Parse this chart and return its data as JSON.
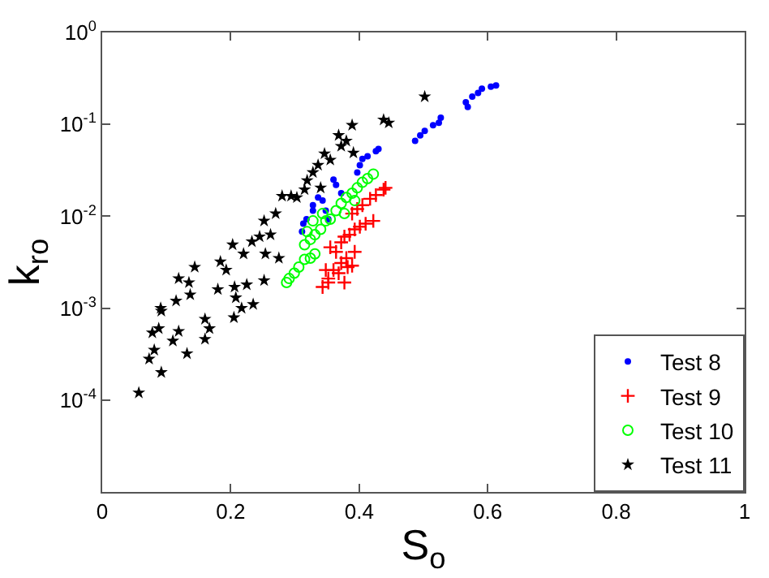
{
  "chart_data": {
    "type": "scatter",
    "xlabel": "S$_{o}$",
    "ylabel": "k$_{ro}$",
    "log": "y",
    "xlim": [
      0,
      1
    ],
    "xticks": [
      0,
      0.2,
      0.4,
      0.6,
      0.8,
      1
    ],
    "ylim": [
      1e-05,
      1
    ],
    "yticks": [
      {
        "value": 1e-05,
        "label": null
      },
      {
        "value": 0.0001,
        "label": "10$^{-4}$"
      },
      {
        "value": 0.001,
        "label": "10$^{-3}$"
      },
      {
        "value": 0.01,
        "label": "10$^{-2}$"
      },
      {
        "value": 0.1,
        "label": "10$^{-1}$"
      },
      {
        "value": 1,
        "label": "10$^{0}$"
      }
    ],
    "legend": "bottom right",
    "series": [
      {
        "name": "Test 8",
        "color": "#0000ff",
        "marker": "circle",
        "x": [
          0.311,
          0.313,
          0.318,
          0.328,
          0.328,
          0.336,
          0.343,
          0.348,
          0.36,
          0.364,
          0.352,
          0.372,
          0.397,
          0.401,
          0.405,
          0.413,
          0.426,
          0.43,
          0.487,
          0.495,
          0.502,
          0.515,
          0.524,
          0.527,
          0.566,
          0.569,
          0.576,
          0.585,
          0.591,
          0.605,
          0.613
        ],
        "values": [
          0.0068,
          0.0083,
          0.0093,
          0.0115,
          0.0132,
          0.016,
          0.0148,
          0.0115,
          0.025,
          0.022,
          0.0093,
          0.0178,
          0.03,
          0.036,
          0.042,
          0.045,
          0.051,
          0.054,
          0.066,
          0.076,
          0.085,
          0.098,
          0.104,
          0.118,
          0.174,
          0.155,
          0.2,
          0.22,
          0.245,
          0.257,
          0.265
        ]
      },
      {
        "name": "Test 9",
        "color": "#ff0000",
        "marker": "cross",
        "x": [
          0.343,
          0.352,
          0.36,
          0.372,
          0.38,
          0.389,
          0.393,
          0.364,
          0.355,
          0.372,
          0.377,
          0.385,
          0.393,
          0.401,
          0.41,
          0.422,
          0.389,
          0.397,
          0.405,
          0.417,
          0.426,
          0.438,
          0.441,
          0.348,
          0.368,
          0.377,
          0.352,
          0.382
        ],
        "values": [
          0.0017,
          0.0021,
          0.0026,
          0.0031,
          0.0035,
          0.0029,
          0.0041,
          0.0041,
          0.0046,
          0.0052,
          0.006,
          0.0063,
          0.0072,
          0.0077,
          0.0083,
          0.0089,
          0.0107,
          0.012,
          0.0132,
          0.0155,
          0.017,
          0.0195,
          0.0204,
          0.0026,
          0.0024,
          0.0019,
          0.0019,
          0.0028
        ]
      },
      {
        "name": "Test 10",
        "color": "#00ff00",
        "marker": "circle-open",
        "x": [
          0.287,
          0.291,
          0.299,
          0.306,
          0.315,
          0.324,
          0.331,
          0.315,
          0.324,
          0.331,
          0.34,
          0.348,
          0.355,
          0.343,
          0.364,
          0.372,
          0.38,
          0.389,
          0.397,
          0.405,
          0.413,
          0.422,
          0.377,
          0.393,
          0.328,
          0.319
        ],
        "values": [
          0.0019,
          0.0021,
          0.0024,
          0.0028,
          0.0034,
          0.0035,
          0.0039,
          0.0049,
          0.0056,
          0.0063,
          0.0072,
          0.0089,
          0.0093,
          0.0107,
          0.0115,
          0.0138,
          0.016,
          0.0178,
          0.0204,
          0.0234,
          0.0257,
          0.0288,
          0.0107,
          0.0148,
          0.0089,
          0.0068
        ]
      },
      {
        "name": "Test 11",
        "color": "#000000",
        "marker": "star",
        "x": [
          0.057,
          0.073,
          0.081,
          0.078,
          0.088,
          0.091,
          0.092,
          0.092,
          0.11,
          0.119,
          0.115,
          0.132,
          0.137,
          0.135,
          0.16,
          0.16,
          0.167,
          0.18,
          0.205,
          0.206,
          0.208,
          0.217,
          0.225,
          0.235,
          0.252,
          0.119,
          0.144,
          0.184,
          0.193,
          0.203,
          0.22,
          0.233,
          0.245,
          0.252,
          0.254,
          0.262,
          0.275,
          0.27,
          0.28,
          0.294,
          0.303,
          0.315,
          0.319,
          0.328,
          0.336,
          0.34,
          0.346,
          0.355,
          0.368,
          0.372,
          0.38,
          0.389,
          0.391,
          0.438,
          0.446,
          0.502
        ],
        "values": [
          0.00012,
          0.00028,
          0.00035,
          0.00054,
          0.0006,
          0.001,
          0.00093,
          0.0002,
          0.00044,
          0.00056,
          0.0012,
          0.00032,
          0.0014,
          0.0019,
          0.00076,
          0.00046,
          0.0006,
          0.0016,
          0.00079,
          0.0017,
          0.0013,
          0.001,
          0.0018,
          0.0011,
          0.002,
          0.0021,
          0.0028,
          0.0032,
          0.0026,
          0.0049,
          0.0039,
          0.0053,
          0.006,
          0.0089,
          0.0039,
          0.0063,
          0.0035,
          0.0107,
          0.0166,
          0.0166,
          0.016,
          0.0195,
          0.0245,
          0.03,
          0.036,
          0.0204,
          0.048,
          0.041,
          0.076,
          0.058,
          0.066,
          0.098,
          0.049,
          0.112,
          0.104,
          0.2
        ]
      }
    ]
  }
}
